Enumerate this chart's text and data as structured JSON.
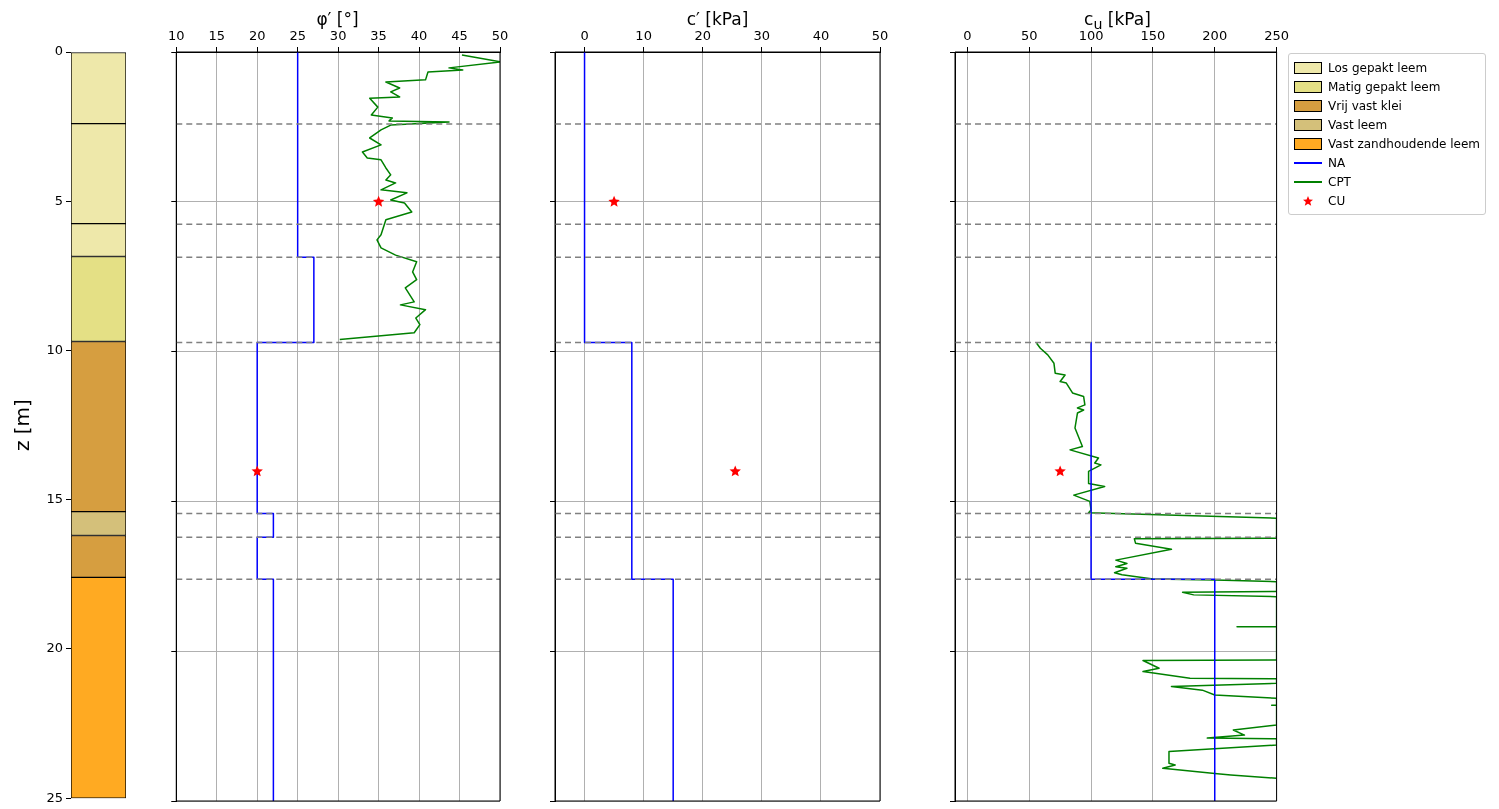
{
  "chart_data": [
    {
      "type": "bar",
      "ylabel": "z [m]",
      "categories": [
        null
      ],
      "stacked": true,
      "ylim": [
        25,
        0
      ],
      "yticks": [
        0,
        5,
        10,
        15,
        20,
        25
      ],
      "tick_labels": "y",
      "legend": "right",
      "series": [
        {
          "name": "Los gepakt leem",
          "color": "#eee8aa",
          "values": [
            2.4
          ]
        },
        {
          "color": "#eee8aa",
          "values": [
            3.35
          ]
        },
        {
          "color": "#eee8aa",
          "values": [
            1.1
          ]
        },
        {
          "name": "Matig gepakt leem",
          "color": "#e4e085",
          "values": [
            2.85
          ]
        },
        {
          "name": "Vrij vast klei",
          "color": "#d69e40",
          "values": [
            5.7
          ]
        },
        {
          "name": "Vast leem",
          "color": "#d4c07a",
          "values": [
            0.8
          ]
        },
        {
          "color": "#d69e40",
          "values": [
            1.4
          ]
        },
        {
          "name": "Vast zandhoudende leem",
          "color": "#ffaa22",
          "values": [
            7.4
          ]
        }
      ]
    },
    {
      "type": "line",
      "xlabel": "φ′ [°]",
      "xlim": [
        10,
        50
      ],
      "xticks": [
        10,
        15,
        20,
        25,
        30,
        35,
        40,
        45,
        50
      ],
      "ylim": [
        25,
        0
      ],
      "yticks": [
        0,
        5,
        10,
        15,
        20,
        25
      ],
      "tick_labels": "x",
      "grid": true,
      "legend": "right",
      "series": [
        {
          "name": "NA",
          "type": "line",
          "color": "#0000ff",
          "x": [
            25,
            25,
            27,
            27,
            20,
            20,
            22,
            22,
            20,
            20,
            22,
            22
          ],
          "values": [
            0,
            6.85,
            6.85,
            9.7,
            9.7,
            15.4,
            15.4,
            16.2,
            16.2,
            17.6,
            17.6,
            25
          ]
        },
        {
          "name": "CPT",
          "type": "line",
          "color": "#008000",
          "x": [
            45.3,
            50,
            43.7,
            45.4,
            41.1,
            40.8,
            35.9,
            37.6,
            36.5,
            37.6,
            33.9,
            34.9,
            34.1,
            36.7,
            36.3,
            43.7,
            36.5,
            35.3,
            33.9,
            35.3,
            33,
            33.6,
            35.3,
            35.9,
            36.5,
            35.9,
            37.1,
            35.3,
            38.5,
            36.5,
            38.2,
            39.1,
            35.9,
            35.3,
            34.8,
            35.3,
            37.1,
            39.7,
            39.2,
            39.7,
            38.3,
            39.4,
            37.7,
            40.8,
            39.6,
            40.1,
            39.4,
            30.2
          ],
          "values": [
            0.1,
            0.33,
            0.53,
            0.6,
            0.67,
            0.93,
            1,
            1.2,
            1.33,
            1.5,
            1.54,
            1.84,
            2.1,
            2.2,
            2.3,
            2.34,
            2.44,
            2.6,
            2.87,
            3.1,
            3.34,
            3.54,
            3.6,
            3.87,
            4.1,
            4.27,
            4.37,
            4.6,
            4.7,
            4.94,
            5.04,
            5.34,
            5.6,
            6.1,
            6.27,
            6.54,
            6.78,
            7,
            7.34,
            7.6,
            7.87,
            8.34,
            8.44,
            8.6,
            8.88,
            9.1,
            9.37,
            9.6
          ]
        },
        {
          "name": "CU",
          "type": "scatter",
          "marker": "star",
          "color": "#ff0000",
          "x": [
            35,
            20
          ],
          "values": [
            5,
            14
          ]
        }
      ],
      "ref_lines": [
        {
          "axis": "y",
          "value": 2.4,
          "color": "#808080",
          "line_style": "dashed"
        },
        {
          "axis": "y",
          "value": 5.75,
          "color": "#808080",
          "line_style": "dashed"
        },
        {
          "axis": "y",
          "value": 6.85,
          "color": "#808080",
          "line_style": "dashed"
        },
        {
          "axis": "y",
          "value": 9.7,
          "color": "#808080",
          "line_style": "dashed"
        },
        {
          "axis": "y",
          "value": 15.4,
          "color": "#808080",
          "line_style": "dashed"
        },
        {
          "axis": "y",
          "value": 16.2,
          "color": "#808080",
          "line_style": "dashed"
        },
        {
          "axis": "y",
          "value": 17.6,
          "color": "#808080",
          "line_style": "dashed"
        }
      ]
    },
    {
      "type": "line",
      "xlabel": "c′ [kPa]",
      "xlim": [
        -5,
        50
      ],
      "xticks": [
        0,
        10,
        20,
        30,
        40,
        50
      ],
      "ylim": [
        25,
        0
      ],
      "yticks": [
        0,
        5,
        10,
        15,
        20,
        25
      ],
      "tick_labels": "x",
      "grid": true,
      "legend": "right",
      "series": [
        {
          "name": "NA",
          "type": "line",
          "color": "#0000ff",
          "x": [
            0,
            0,
            8,
            8,
            15,
            15
          ],
          "values": [
            0,
            9.7,
            9.7,
            17.6,
            17.6,
            25
          ]
        },
        {
          "name": "CU",
          "type": "scatter",
          "marker": "star",
          "color": "#ff0000",
          "x": [
            5,
            25.5
          ],
          "values": [
            5,
            14
          ]
        }
      ],
      "ref_lines": [
        {
          "axis": "y",
          "value": 2.4,
          "color": "#808080",
          "line_style": "dashed"
        },
        {
          "axis": "y",
          "value": 5.75,
          "color": "#808080",
          "line_style": "dashed"
        },
        {
          "axis": "y",
          "value": 6.85,
          "color": "#808080",
          "line_style": "dashed"
        },
        {
          "axis": "y",
          "value": 9.7,
          "color": "#808080",
          "line_style": "dashed"
        },
        {
          "axis": "y",
          "value": 15.4,
          "color": "#808080",
          "line_style": "dashed"
        },
        {
          "axis": "y",
          "value": 16.2,
          "color": "#808080",
          "line_style": "dashed"
        },
        {
          "axis": "y",
          "value": 17.6,
          "color": "#808080",
          "line_style": "dashed"
        }
      ]
    },
    {
      "type": "line",
      "xlabel": "c$_{u}$ [kPa]",
      "xlim": [
        -10,
        250
      ],
      "xticks": [
        0,
        50,
        100,
        150,
        200,
        250
      ],
      "ylim": [
        25,
        0
      ],
      "yticks": [
        0,
        5,
        10,
        15,
        20,
        25
      ],
      "tick_labels": "x",
      "grid": true,
      "legend": "right",
      "series": [
        {
          "name": "NA",
          "type": "line",
          "color": "#0000ff",
          "x": [
            100,
            100,
            200,
            200
          ],
          "values": [
            9.7,
            17.6,
            17.6,
            25
          ]
        },
        {
          "name": "CPT",
          "type": "line",
          "color": "#008000",
          "x": [
            56,
            59,
            65,
            70,
            71,
            79,
            75,
            80,
            85,
            94,
            95,
            89,
            94,
            89,
            87,
            93,
            83,
            106,
            103,
            108,
            98,
            98,
            111,
            86,
            99,
            100,
            98,
            250,
            250,
            135,
            136,
            165,
            120,
            129,
            120,
            129,
            119,
            125,
            150,
            200,
            250,
            250,
            174,
            183,
            250,
            250,
            218,
            250,
            250,
            142,
            155,
            142,
            180,
            250,
            250,
            165,
            190,
            200,
            250,
            250,
            246,
            250,
            250,
            215,
            224,
            194,
            250,
            250,
            163,
            163,
            168,
            158,
            200,
            213,
            250
          ],
          "values": [
            9.72,
            9.89,
            10.11,
            10.39,
            10.72,
            10.78,
            11,
            11.05,
            11.38,
            11.5,
            11.78,
            11.88,
            11.95,
            12.05,
            12.55,
            13.17,
            13.28,
            13.55,
            13.72,
            13.78,
            14,
            14.4,
            14.5,
            14.79,
            15,
            15.29,
            15.38,
            15.56,
            16.23,
            16.25,
            16.4,
            16.6,
            16.96,
            17.07,
            17.18,
            17.23,
            17.38,
            17.45,
            17.59,
            17.62,
            17.68,
            18.01,
            18.03,
            18.12,
            18.18,
            19.18,
            19.18,
            19.18,
            20.29,
            20.31,
            20.57,
            20.68,
            20.9,
            20.92,
            21.07,
            21.18,
            21.3,
            21.46,
            21.57,
            21.8,
            21.8,
            21.8,
            22.46,
            22.63,
            22.8,
            22.9,
            22.92,
            23.13,
            23.35,
            23.74,
            23.8,
            23.91,
            24.08,
            24.13,
            24.24
          ]
        },
        {
          "name": "CU",
          "type": "scatter",
          "marker": "star",
          "color": "#ff0000",
          "x": [
            75
          ],
          "values": [
            14
          ]
        }
      ],
      "ref_lines": [
        {
          "axis": "y",
          "value": 2.4,
          "color": "#808080",
          "line_style": "dashed"
        },
        {
          "axis": "y",
          "value": 5.75,
          "color": "#808080",
          "line_style": "dashed"
        },
        {
          "axis": "y",
          "value": 6.85,
          "color": "#808080",
          "line_style": "dashed"
        },
        {
          "axis": "y",
          "value": 9.7,
          "color": "#808080",
          "line_style": "dashed"
        },
        {
          "axis": "y",
          "value": 15.4,
          "color": "#808080",
          "line_style": "dashed"
        },
        {
          "axis": "y",
          "value": 16.2,
          "color": "#808080",
          "line_style": "dashed"
        },
        {
          "axis": "y",
          "value": 17.6,
          "color": "#808080",
          "line_style": "dashed"
        }
      ]
    }
  ]
}
